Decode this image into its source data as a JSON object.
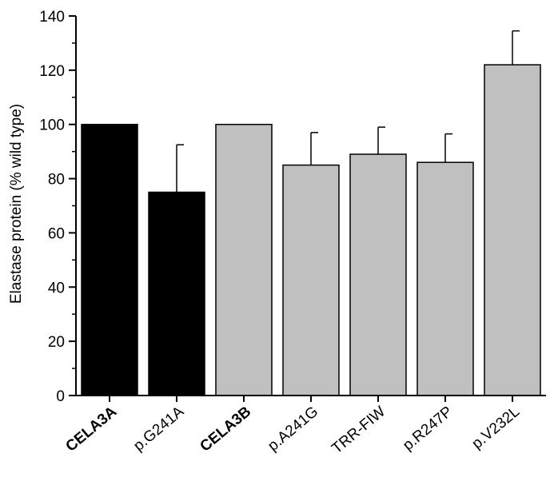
{
  "chart_data": {
    "type": "bar",
    "title": "",
    "xlabel": "",
    "ylabel": "Elastase protein (% wild type)",
    "ylim": [
      0,
      140
    ],
    "yticks": [
      0,
      20,
      40,
      60,
      80,
      100,
      120,
      140
    ],
    "grid": false,
    "legend": "none",
    "categories": [
      "CELA3A",
      "p.G241A",
      "CELA3B",
      "p.A241G",
      "TRR-FIW",
      "p.R247P",
      "p.V232L"
    ],
    "bold_categories": [
      "CELA3A",
      "CELA3B"
    ],
    "values": [
      100,
      75,
      100,
      85,
      89,
      86,
      122
    ],
    "error_upper": [
      0,
      17.5,
      0,
      12,
      10,
      10.5,
      12.5
    ],
    "bar_colors": [
      "#000000",
      "#000000",
      "#c0c0c0",
      "#c0c0c0",
      "#c0c0c0",
      "#c0c0c0",
      "#c0c0c0"
    ]
  }
}
